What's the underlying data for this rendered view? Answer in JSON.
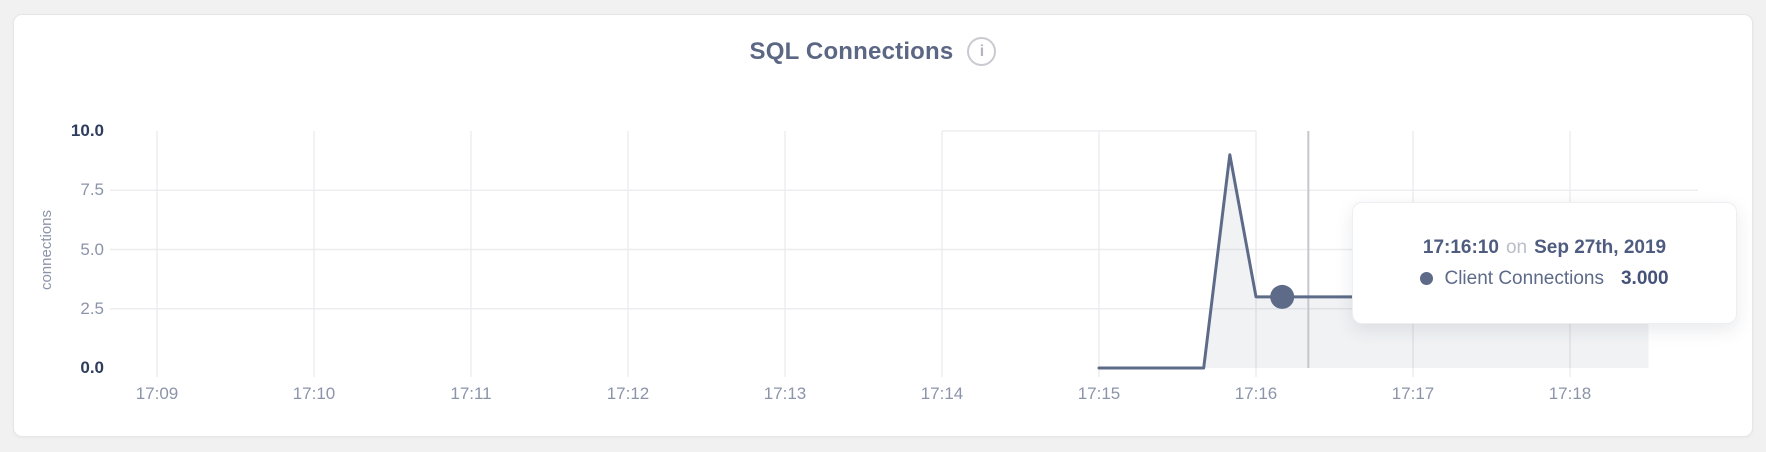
{
  "card": {
    "title": "SQL Connections",
    "info_icon": "i"
  },
  "colors": {
    "page_bg": "#f1f1f2",
    "card_bg": "#ffffff",
    "card_border": "#e5e6e9",
    "title_text": "#5b6783",
    "axis_text": "#8b94a9",
    "axis_text_strong": "#2e3c5e",
    "grid": "#ededf0",
    "crosshair": "#c5c7cd",
    "accent_line": "#5d6b89",
    "area_fill": "rgba(93,107,137,0.09)",
    "tooltip_text": "#4e5c7f",
    "tooltip_muted": "#b9bec8"
  },
  "chart_data": {
    "type": "area",
    "title": "SQL Connections",
    "xlabel": "",
    "ylabel": "connections",
    "ylim": [
      0,
      10
    ],
    "grid": true,
    "legend_position": "none",
    "x_ticks": [
      "17:09",
      "17:10",
      "17:11",
      "17:12",
      "17:13",
      "17:14",
      "17:15",
      "17:16",
      "17:17",
      "17:18"
    ],
    "y_ticks": [
      {
        "label": "10.0",
        "value": 10,
        "strong": true,
        "grid": false
      },
      {
        "label": "7.5",
        "value": 7.5,
        "strong": false,
        "grid": true
      },
      {
        "label": "5.0",
        "value": 5,
        "strong": false,
        "grid": true
      },
      {
        "label": "2.5",
        "value": 2.5,
        "strong": false,
        "grid": true
      },
      {
        "label": "0.0",
        "value": 0,
        "strong": true,
        "grid": false
      }
    ],
    "series": [
      {
        "name": "Client Connections",
        "color": "#5d6b89",
        "fill": "rgba(93,107,137,0.09)",
        "points": [
          [
            "17:15:00",
            0
          ],
          [
            "17:15:10",
            0
          ],
          [
            "17:15:20",
            0
          ],
          [
            "17:15:30",
            0
          ],
          [
            "17:15:40",
            0
          ],
          [
            "17:15:50",
            9
          ],
          [
            "17:16:00",
            3
          ],
          [
            "17:16:10",
            3
          ],
          [
            "17:16:20",
            3
          ],
          [
            "17:16:30",
            3
          ],
          [
            "17:16:40",
            3
          ],
          [
            "17:16:50",
            3
          ],
          [
            "17:17:00",
            3
          ],
          [
            "17:17:10",
            3
          ],
          [
            "17:17:20",
            3
          ],
          [
            "17:17:30",
            3
          ],
          [
            "17:17:40",
            3
          ],
          [
            "17:17:50",
            3
          ],
          [
            "17:18:00",
            3
          ],
          [
            "17:18:10",
            3
          ],
          [
            "17:18:20",
            3
          ],
          [
            "17:18:30",
            3
          ]
        ]
      }
    ]
  },
  "hover": {
    "crosshair_time": "17:16:20",
    "point": {
      "time": "17:16:10",
      "value": 3
    }
  },
  "tooltip": {
    "time": "17:16:10",
    "connector": "on",
    "date": "Sep 27th, 2019",
    "series_label": "Client Connections",
    "value": "3.000"
  }
}
